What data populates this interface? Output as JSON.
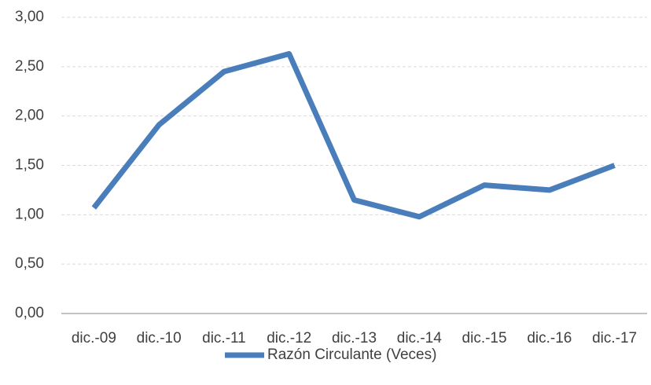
{
  "chart_data": {
    "type": "line",
    "categories": [
      "dic.-09",
      "dic.-10",
      "dic.-11",
      "dic.-12",
      "dic.-13",
      "dic.-14",
      "dic.-15",
      "dic.-16",
      "dic.-17"
    ],
    "series": [
      {
        "name": "Razón Circulante (Veces)",
        "color": "#4a7ebb",
        "values": [
          1.07,
          1.91,
          2.45,
          2.63,
          1.15,
          0.98,
          1.3,
          1.25,
          1.5
        ]
      }
    ],
    "ylim": [
      0,
      3
    ],
    "yticks": [
      {
        "value": 0,
        "label": "0,00"
      },
      {
        "value": 0.5,
        "label": "0,50"
      },
      {
        "value": 1,
        "label": "1,00"
      },
      {
        "value": 1.5,
        "label": "1,50"
      },
      {
        "value": 2,
        "label": "2,00"
      },
      {
        "value": 2.5,
        "label": "2,50"
      },
      {
        "value": 3,
        "label": "3,00"
      }
    ],
    "grid": true,
    "legend": "bottom"
  }
}
